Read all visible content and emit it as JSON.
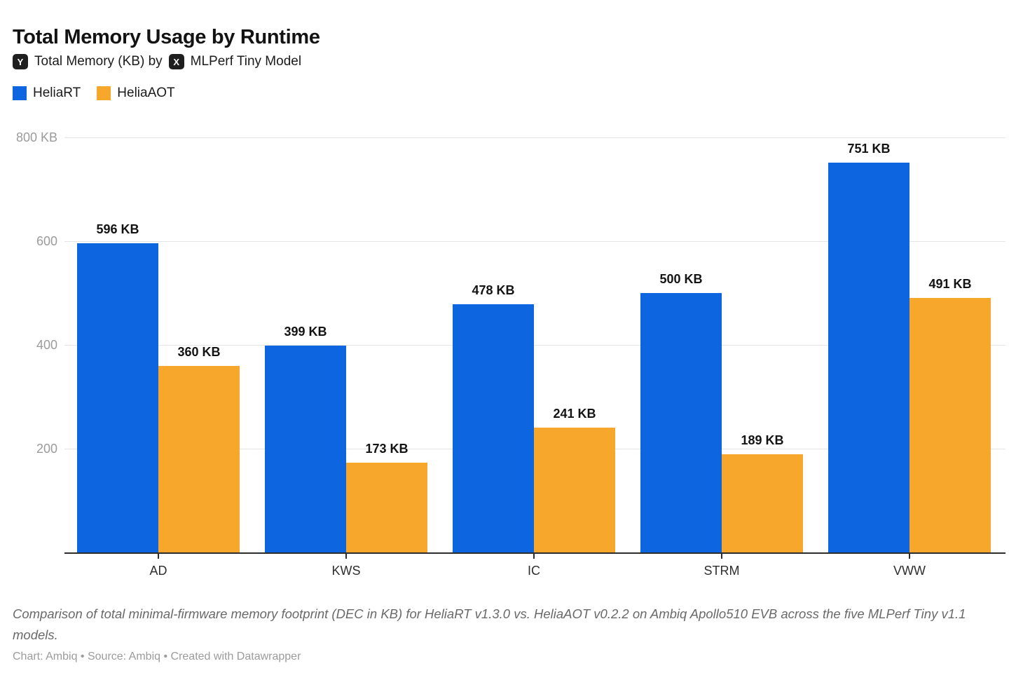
{
  "header": {
    "title": "Total Memory Usage by Runtime",
    "subtitle": {
      "y_badge": "Y",
      "part1": "Total Memory (KB) by",
      "x_badge": "X",
      "part2": "MLPerf Tiny Model"
    }
  },
  "chart_data": {
    "type": "bar",
    "title": "Total Memory Usage by Runtime",
    "subtitle": "Y Total Memory (KB) by X MLPerf Tiny Model",
    "categories": [
      "AD",
      "KWS",
      "IC",
      "STRM",
      "VWW"
    ],
    "series": [
      {
        "name": "HeliaRT",
        "color": "#0d66e0",
        "values": [
          596,
          399,
          478,
          500,
          751
        ],
        "labels": [
          "596 KB",
          "399 KB",
          "478 KB",
          "500 KB",
          "751 KB"
        ]
      },
      {
        "name": "HeliaAOT",
        "color": "#f7a72c",
        "values": [
          360,
          173,
          241,
          189,
          491
        ],
        "labels": [
          "360 KB",
          "173 KB",
          "241 KB",
          "189 KB",
          "491 KB"
        ]
      }
    ],
    "ylabel": "Total Memory (KB)",
    "xlabel": "MLPerf Tiny Model",
    "ylim": [
      0,
      800
    ],
    "yticks": [
      {
        "value": 800,
        "label": "800 KB"
      },
      {
        "value": 600,
        "label": "600"
      },
      {
        "value": 400,
        "label": "400"
      },
      {
        "value": 200,
        "label": "200"
      }
    ],
    "grid": true,
    "legend_position": "top-left"
  },
  "footer": {
    "description": "Comparison of total minimal-firmware memory footprint (DEC in KB) for HeliaRT v1.3.0 vs. HeliaAOT v0.2.2 on Ambiq Apollo510 EVB across the five MLPerf Tiny v1.1 models.",
    "attribution": "Chart: Ambiq • Source: Ambiq • Created with Datawrapper"
  },
  "colors": {
    "bar_blue": "#0d66e0",
    "bar_orange": "#f7a72c",
    "gridline": "#e4e4e4",
    "axis": "#2d2d2d",
    "y_tick_label": "#9b9b9b"
  }
}
